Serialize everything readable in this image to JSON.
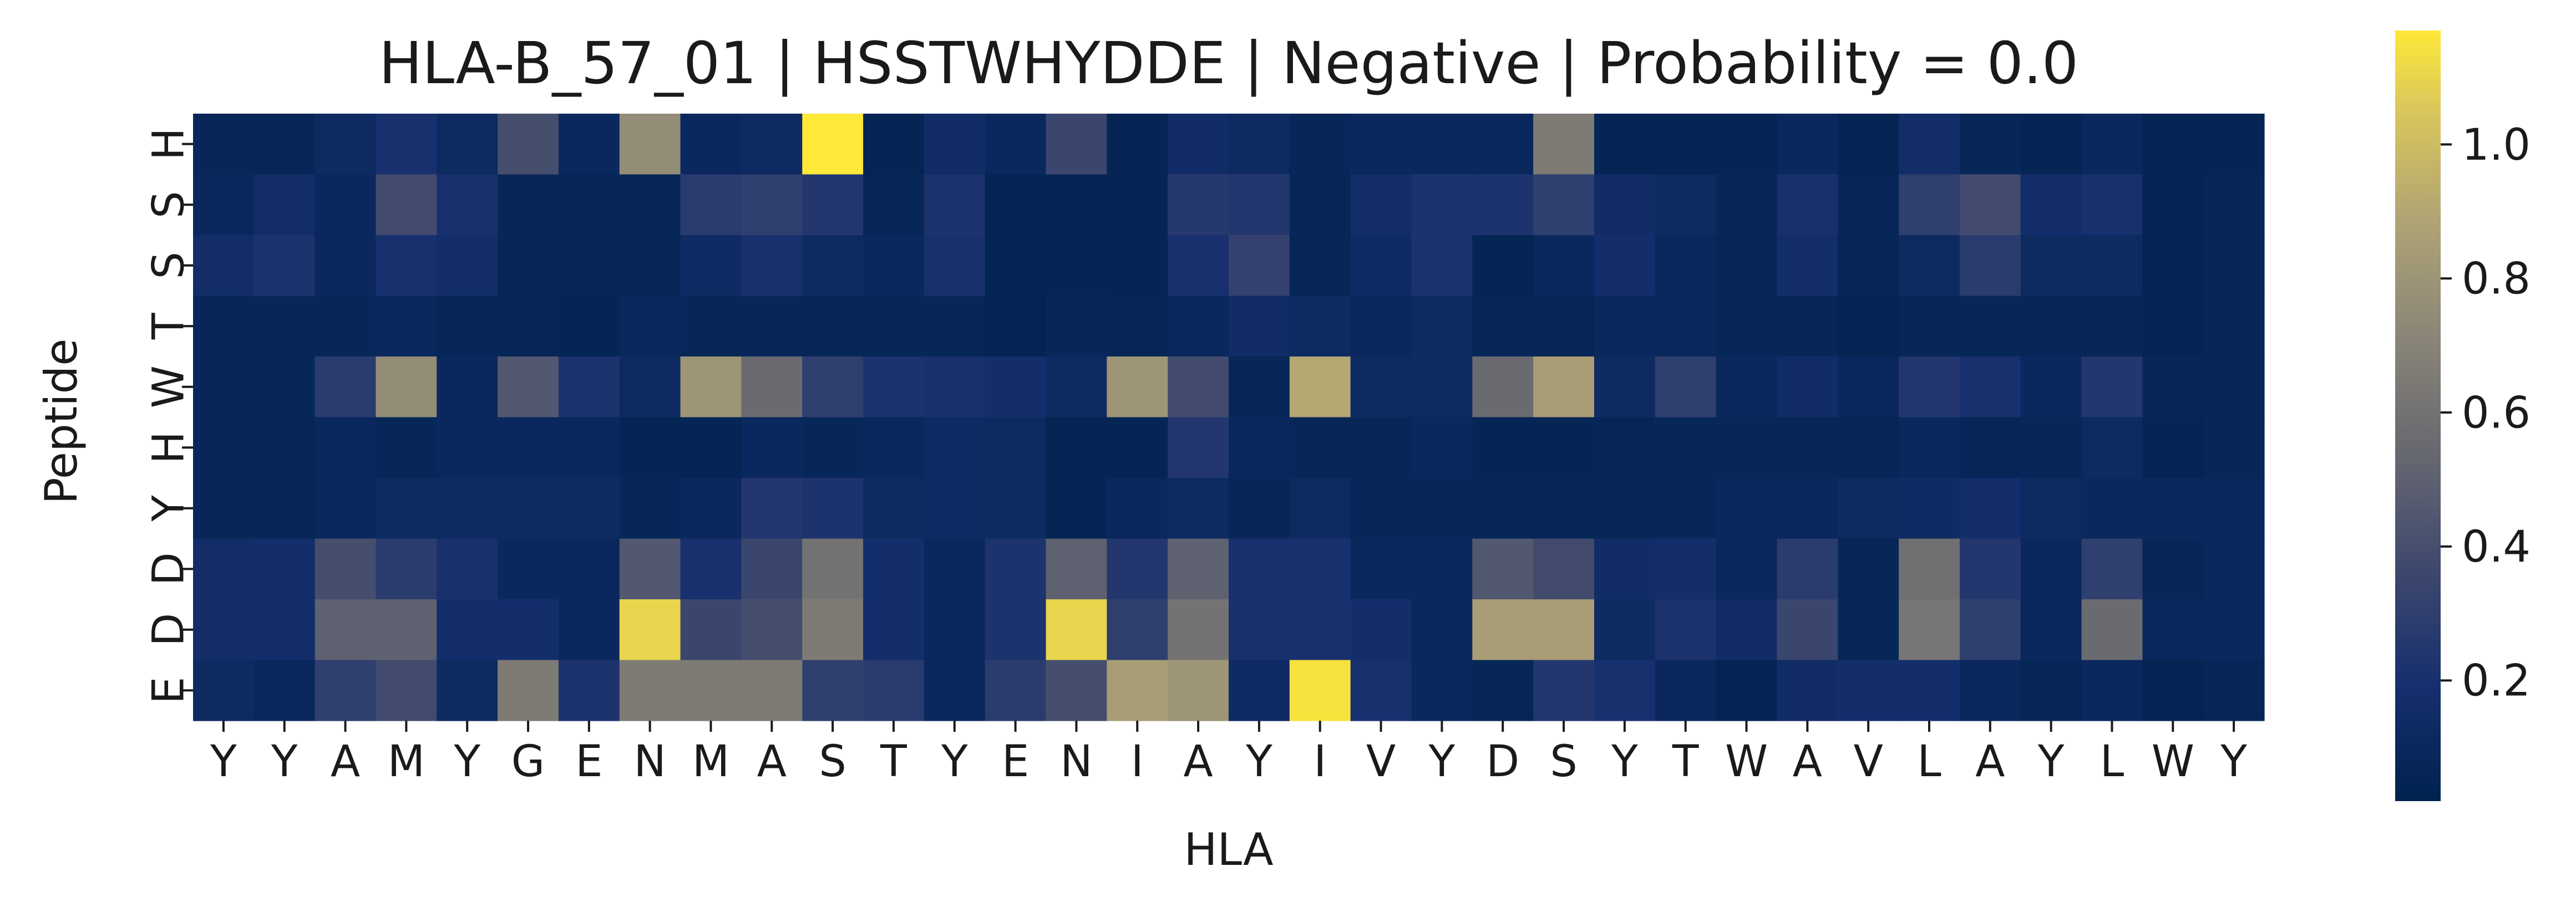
{
  "chart_data": {
    "type": "heatmap",
    "title": "HLA-B_57_01 | HSSTWHYDDE | Negative | Probability = 0.0",
    "xlabel": "HLA",
    "ylabel": "Peptide",
    "x_categories": [
      "Y",
      "Y",
      "A",
      "M",
      "Y",
      "G",
      "E",
      "N",
      "M",
      "A",
      "S",
      "T",
      "Y",
      "E",
      "N",
      "I",
      "A",
      "Y",
      "I",
      "V",
      "Y",
      "D",
      "S",
      "Y",
      "T",
      "W",
      "A",
      "V",
      "L",
      "A",
      "Y",
      "L",
      "W",
      "Y"
    ],
    "y_categories": [
      "H",
      "S",
      "S",
      "T",
      "W",
      "H",
      "Y",
      "D",
      "D",
      "E"
    ],
    "colormap": "cividis",
    "color_range": [
      0.02,
      1.17
    ],
    "colorbar_ticks": [
      "0.2",
      "0.4",
      "0.6",
      "0.8",
      "1.0"
    ],
    "colorbar_tick_values": [
      0.2,
      0.4,
      0.6,
      0.8,
      1.0
    ],
    "values": [
      [
        0.08,
        0.08,
        0.12,
        0.2,
        0.12,
        0.4,
        0.1,
        0.75,
        0.1,
        0.12,
        1.17,
        0.06,
        0.15,
        0.1,
        0.35,
        0.06,
        0.15,
        0.12,
        0.08,
        0.1,
        0.1,
        0.1,
        0.65,
        0.06,
        0.05,
        0.06,
        0.1,
        0.05,
        0.16,
        0.08,
        0.06,
        0.1,
        0.05,
        0.06
      ],
      [
        0.1,
        0.16,
        0.1,
        0.38,
        0.2,
        0.08,
        0.07,
        0.08,
        0.28,
        0.3,
        0.25,
        0.08,
        0.22,
        0.05,
        0.06,
        0.06,
        0.26,
        0.25,
        0.08,
        0.16,
        0.22,
        0.22,
        0.3,
        0.15,
        0.12,
        0.08,
        0.2,
        0.07,
        0.3,
        0.38,
        0.18,
        0.2,
        0.05,
        0.08
      ],
      [
        0.16,
        0.22,
        0.1,
        0.2,
        0.18,
        0.08,
        0.07,
        0.07,
        0.14,
        0.2,
        0.12,
        0.1,
        0.2,
        0.05,
        0.06,
        0.06,
        0.2,
        0.32,
        0.07,
        0.14,
        0.22,
        0.06,
        0.1,
        0.18,
        0.1,
        0.07,
        0.18,
        0.07,
        0.12,
        0.28,
        0.12,
        0.12,
        0.05,
        0.08
      ],
      [
        0.08,
        0.08,
        0.08,
        0.1,
        0.07,
        0.07,
        0.06,
        0.1,
        0.08,
        0.08,
        0.07,
        0.08,
        0.08,
        0.05,
        0.08,
        0.07,
        0.1,
        0.15,
        0.12,
        0.1,
        0.12,
        0.07,
        0.07,
        0.1,
        0.1,
        0.07,
        0.08,
        0.06,
        0.08,
        0.08,
        0.08,
        0.08,
        0.06,
        0.08
      ],
      [
        0.08,
        0.08,
        0.28,
        0.75,
        0.1,
        0.45,
        0.22,
        0.12,
        0.8,
        0.55,
        0.3,
        0.22,
        0.2,
        0.18,
        0.12,
        0.8,
        0.38,
        0.08,
        0.9,
        0.12,
        0.12,
        0.55,
        0.85,
        0.12,
        0.3,
        0.1,
        0.15,
        0.1,
        0.25,
        0.2,
        0.1,
        0.25,
        0.08,
        0.08
      ],
      [
        0.08,
        0.08,
        0.1,
        0.08,
        0.1,
        0.1,
        0.1,
        0.06,
        0.06,
        0.1,
        0.08,
        0.1,
        0.13,
        0.12,
        0.06,
        0.06,
        0.25,
        0.1,
        0.08,
        0.08,
        0.1,
        0.06,
        0.06,
        0.07,
        0.08,
        0.08,
        0.08,
        0.07,
        0.1,
        0.07,
        0.08,
        0.12,
        0.06,
        0.08
      ],
      [
        0.08,
        0.07,
        0.1,
        0.12,
        0.12,
        0.12,
        0.12,
        0.08,
        0.1,
        0.25,
        0.22,
        0.12,
        0.13,
        0.12,
        0.06,
        0.1,
        0.12,
        0.08,
        0.12,
        0.08,
        0.08,
        0.08,
        0.08,
        0.08,
        0.08,
        0.1,
        0.1,
        0.12,
        0.14,
        0.18,
        0.12,
        0.1,
        0.1,
        0.1
      ],
      [
        0.16,
        0.18,
        0.4,
        0.28,
        0.2,
        0.1,
        0.1,
        0.45,
        0.2,
        0.35,
        0.6,
        0.18,
        0.1,
        0.22,
        0.5,
        0.25,
        0.5,
        0.2,
        0.2,
        0.1,
        0.1,
        0.45,
        0.38,
        0.15,
        0.18,
        0.1,
        0.28,
        0.08,
        0.58,
        0.25,
        0.1,
        0.3,
        0.08,
        0.1
      ],
      [
        0.16,
        0.18,
        0.5,
        0.5,
        0.18,
        0.18,
        0.1,
        1.1,
        0.35,
        0.4,
        0.65,
        0.18,
        0.1,
        0.22,
        1.1,
        0.3,
        0.6,
        0.2,
        0.2,
        0.18,
        0.1,
        0.85,
        0.85,
        0.12,
        0.22,
        0.15,
        0.35,
        0.08,
        0.62,
        0.3,
        0.1,
        0.55,
        0.1,
        0.1
      ],
      [
        0.12,
        0.1,
        0.3,
        0.38,
        0.12,
        0.65,
        0.22,
        0.65,
        0.65,
        0.65,
        0.3,
        0.28,
        0.1,
        0.28,
        0.4,
        0.85,
        0.8,
        0.14,
        1.15,
        0.2,
        0.1,
        0.07,
        0.25,
        0.2,
        0.1,
        0.05,
        0.15,
        0.18,
        0.18,
        0.1,
        0.07,
        0.1,
        0.05,
        0.07
      ]
    ]
  }
}
